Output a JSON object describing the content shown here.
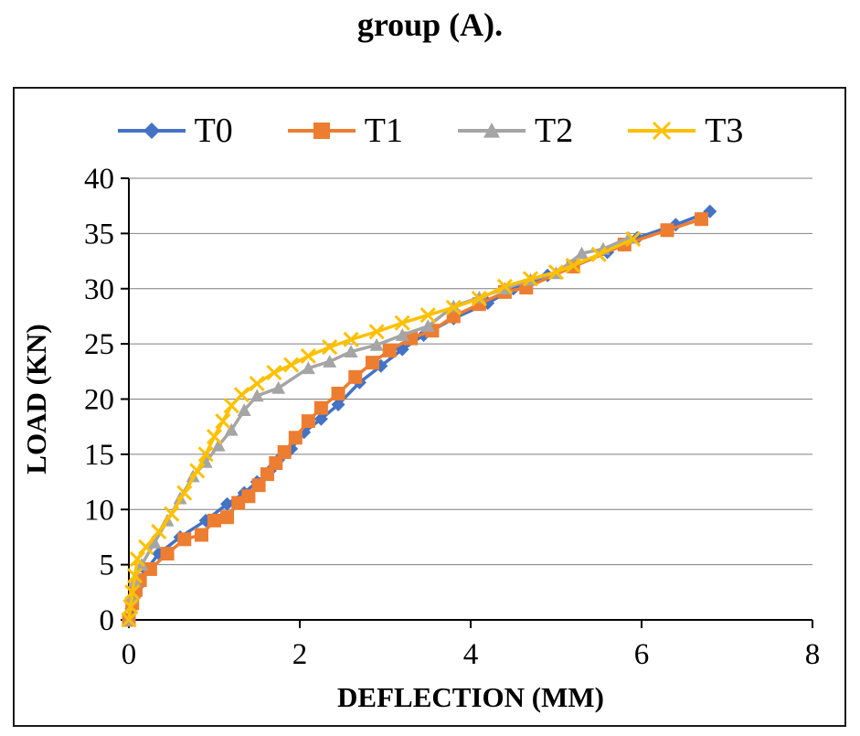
{
  "page": {
    "title": "group (A)."
  },
  "chart_data": {
    "type": "line",
    "title": "group (A).",
    "xlabel": "DEFLECTION   (MM)",
    "ylabel": "LOAD  (KN)",
    "xlim": [
      0,
      8
    ],
    "xstep": 2,
    "ylim": [
      0,
      40
    ],
    "ystep": 5,
    "grid": "horizontal",
    "legend_position": "top",
    "axis_color": "#000000",
    "gridline_color": "#7f7f7f",
    "series": [
      {
        "name": "T0",
        "color": "#4472C4",
        "marker": "diamond",
        "points": [
          [
            0,
            0
          ],
          [
            0.03,
            1
          ],
          [
            0.06,
            2
          ],
          [
            0.1,
            3
          ],
          [
            0.2,
            4.5
          ],
          [
            0.35,
            6
          ],
          [
            0.6,
            7.5
          ],
          [
            0.9,
            9
          ],
          [
            1.15,
            10.5
          ],
          [
            1.35,
            11.5
          ],
          [
            1.5,
            12.5
          ],
          [
            1.65,
            13.5
          ],
          [
            1.75,
            14.5
          ],
          [
            1.9,
            15.5
          ],
          [
            2.05,
            17
          ],
          [
            2.25,
            18.2
          ],
          [
            2.45,
            19.5
          ],
          [
            2.7,
            21.5
          ],
          [
            2.95,
            23
          ],
          [
            3.2,
            24.5
          ],
          [
            3.45,
            25.8
          ],
          [
            3.8,
            27.3
          ],
          [
            4.2,
            28.7
          ],
          [
            4.5,
            30
          ],
          [
            4.9,
            31.2
          ],
          [
            5.2,
            32
          ],
          [
            5.6,
            33.3
          ],
          [
            5.95,
            34.6
          ],
          [
            6.4,
            35.8
          ],
          [
            6.8,
            37
          ]
        ]
      },
      {
        "name": "T1",
        "color": "#ED7D31",
        "marker": "square",
        "points": [
          [
            0,
            0
          ],
          [
            0.04,
            1.5
          ],
          [
            0.08,
            2.7
          ],
          [
            0.13,
            3.6
          ],
          [
            0.25,
            4.6
          ],
          [
            0.45,
            6
          ],
          [
            0.65,
            7.3
          ],
          [
            0.85,
            7.7
          ],
          [
            1,
            9
          ],
          [
            1.15,
            9.3
          ],
          [
            1.28,
            10.6
          ],
          [
            1.4,
            11.2
          ],
          [
            1.52,
            12.2
          ],
          [
            1.62,
            13.2
          ],
          [
            1.72,
            14.2
          ],
          [
            1.82,
            15.2
          ],
          [
            1.95,
            16.5
          ],
          [
            2.1,
            18
          ],
          [
            2.25,
            19.2
          ],
          [
            2.45,
            20.5
          ],
          [
            2.65,
            22
          ],
          [
            2.85,
            23.3
          ],
          [
            3.05,
            24.4
          ],
          [
            3.3,
            25.5
          ],
          [
            3.55,
            26.2
          ],
          [
            3.8,
            27.5
          ],
          [
            4.1,
            28.6
          ],
          [
            4.4,
            29.7
          ],
          [
            4.65,
            30.1
          ],
          [
            5.2,
            32
          ],
          [
            5.8,
            34
          ],
          [
            6.3,
            35.3
          ],
          [
            6.7,
            36.3
          ]
        ]
      },
      {
        "name": "T2",
        "color": "#A5A5A5",
        "marker": "triangle",
        "points": [
          [
            0,
            0
          ],
          [
            0.03,
            2
          ],
          [
            0.07,
            3.5
          ],
          [
            0.15,
            5
          ],
          [
            0.3,
            7
          ],
          [
            0.45,
            9
          ],
          [
            0.6,
            11
          ],
          [
            0.75,
            13
          ],
          [
            0.9,
            14.3
          ],
          [
            1.05,
            15.8
          ],
          [
            1.2,
            17.2
          ],
          [
            1.35,
            19
          ],
          [
            1.5,
            20.3
          ],
          [
            1.75,
            21
          ],
          [
            2.1,
            22.8
          ],
          [
            2.35,
            23.4
          ],
          [
            2.6,
            24.3
          ],
          [
            2.9,
            24.9
          ],
          [
            3.2,
            25.8
          ],
          [
            3.5,
            26.6
          ],
          [
            3.8,
            28.4
          ],
          [
            4.1,
            29.2
          ],
          [
            4.4,
            30
          ],
          [
            4.7,
            30.8
          ],
          [
            5,
            31.4
          ],
          [
            5.3,
            33.2
          ],
          [
            5.55,
            33.6
          ],
          [
            5.85,
            34.6
          ]
        ]
      },
      {
        "name": "T3",
        "color": "#FFC000",
        "marker": "x",
        "points": [
          [
            0,
            0
          ],
          [
            0.02,
            1.2
          ],
          [
            0.04,
            2.5
          ],
          [
            0.07,
            4
          ],
          [
            0.1,
            5.5
          ],
          [
            0.2,
            6.6
          ],
          [
            0.35,
            8
          ],
          [
            0.5,
            9.6
          ],
          [
            0.65,
            11.5
          ],
          [
            0.8,
            13.5
          ],
          [
            0.9,
            15
          ],
          [
            1,
            16.6
          ],
          [
            1.1,
            18
          ],
          [
            1.2,
            19.4
          ],
          [
            1.32,
            20.4
          ],
          [
            1.5,
            21.4
          ],
          [
            1.7,
            22.4
          ],
          [
            1.9,
            23.1
          ],
          [
            2.1,
            23.9
          ],
          [
            2.35,
            24.7
          ],
          [
            2.6,
            25.4
          ],
          [
            2.9,
            26.1
          ],
          [
            3.2,
            26.9
          ],
          [
            3.5,
            27.6
          ],
          [
            3.8,
            28.3
          ],
          [
            4.1,
            29.1
          ],
          [
            4.4,
            30.2
          ],
          [
            4.7,
            30.9
          ],
          [
            5,
            31.5
          ],
          [
            5.2,
            32.1
          ],
          [
            5.5,
            33.1
          ],
          [
            5.9,
            34.5
          ]
        ]
      }
    ]
  }
}
